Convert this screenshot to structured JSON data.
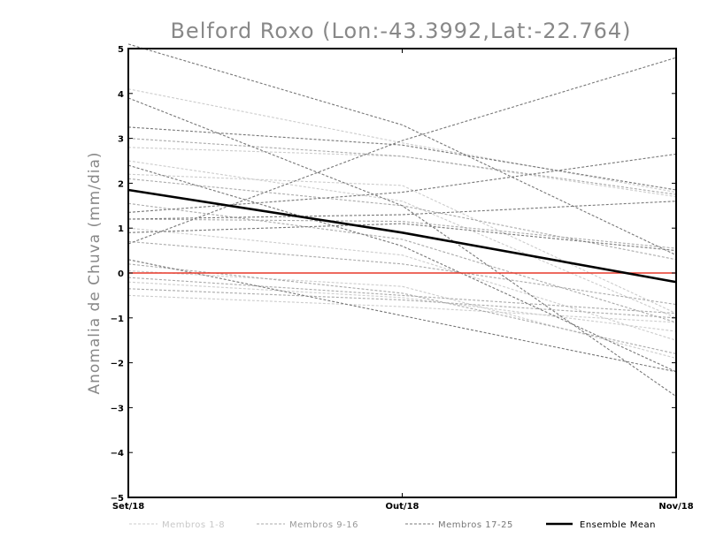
{
  "chart_data": {
    "type": "line",
    "title": "Belford Roxo (Lon:-43.3992,Lat:-22.764)",
    "xlabel": "",
    "ylabel": "Anomalia de Chuva (mm/dia)",
    "categories": [
      "Set/18",
      "Out/18",
      "Nov/18"
    ],
    "ylim": [
      -5,
      5
    ],
    "yticks": [
      5,
      4,
      3,
      2,
      1,
      0,
      -1,
      -2,
      -3,
      -4,
      -5
    ],
    "reference_line": {
      "value": 0,
      "color": "#e8392a"
    },
    "legend": [
      {
        "label": "Membros 1-8",
        "color": "#cccccc"
      },
      {
        "label": "Membros 9-16",
        "color": "#aaaaaa"
      },
      {
        "label": "Membros 17-25",
        "color": "#777777"
      },
      {
        "label": "Ensemble Mean",
        "color": "#000000"
      }
    ],
    "groups": [
      {
        "name": "Membros 1-8",
        "color": "#cccccc",
        "series": [
          [
            4.1,
            2.9,
            1.8
          ],
          [
            2.8,
            2.6,
            1.7
          ],
          [
            2.2,
            1.95,
            -0.9
          ],
          [
            2.5,
            1.6,
            -1.0
          ],
          [
            1.0,
            0.4,
            -1.5
          ],
          [
            0.05,
            -0.3,
            -1.9
          ],
          [
            -0.2,
            -0.55,
            -1.3
          ],
          [
            -0.5,
            -0.75,
            -1.1
          ]
        ]
      },
      {
        "name": "Membros 9-16",
        "color": "#aaaaaa",
        "series": [
          [
            3.0,
            2.6,
            1.75
          ],
          [
            2.1,
            1.5,
            0.3
          ],
          [
            1.55,
            0.75,
            -1.1
          ],
          [
            1.2,
            1.15,
            0.55
          ],
          [
            0.7,
            0.2,
            -0.7
          ],
          [
            0.2,
            -0.45,
            -1.8
          ],
          [
            -0.1,
            -0.5,
            -0.9
          ],
          [
            -0.35,
            -0.6,
            -1.0
          ]
        ]
      },
      {
        "name": "Membros 17-25",
        "color": "#777777",
        "series": [
          [
            5.1,
            3.3,
            0.4
          ],
          [
            0.65,
            2.95,
            4.8
          ],
          [
            3.9,
            1.5,
            -2.75
          ],
          [
            3.25,
            2.85,
            1.85
          ],
          [
            2.4,
            0.6,
            -2.2
          ],
          [
            1.35,
            1.8,
            2.65
          ],
          [
            1.2,
            1.3,
            1.6
          ],
          [
            0.9,
            1.1,
            0.5
          ],
          [
            0.3,
            -0.95,
            -2.2
          ]
        ]
      }
    ],
    "ensemble_mean": {
      "name": "Ensemble Mean",
      "color": "#000000",
      "values": [
        1.85,
        0.9,
        -0.2
      ]
    }
  }
}
